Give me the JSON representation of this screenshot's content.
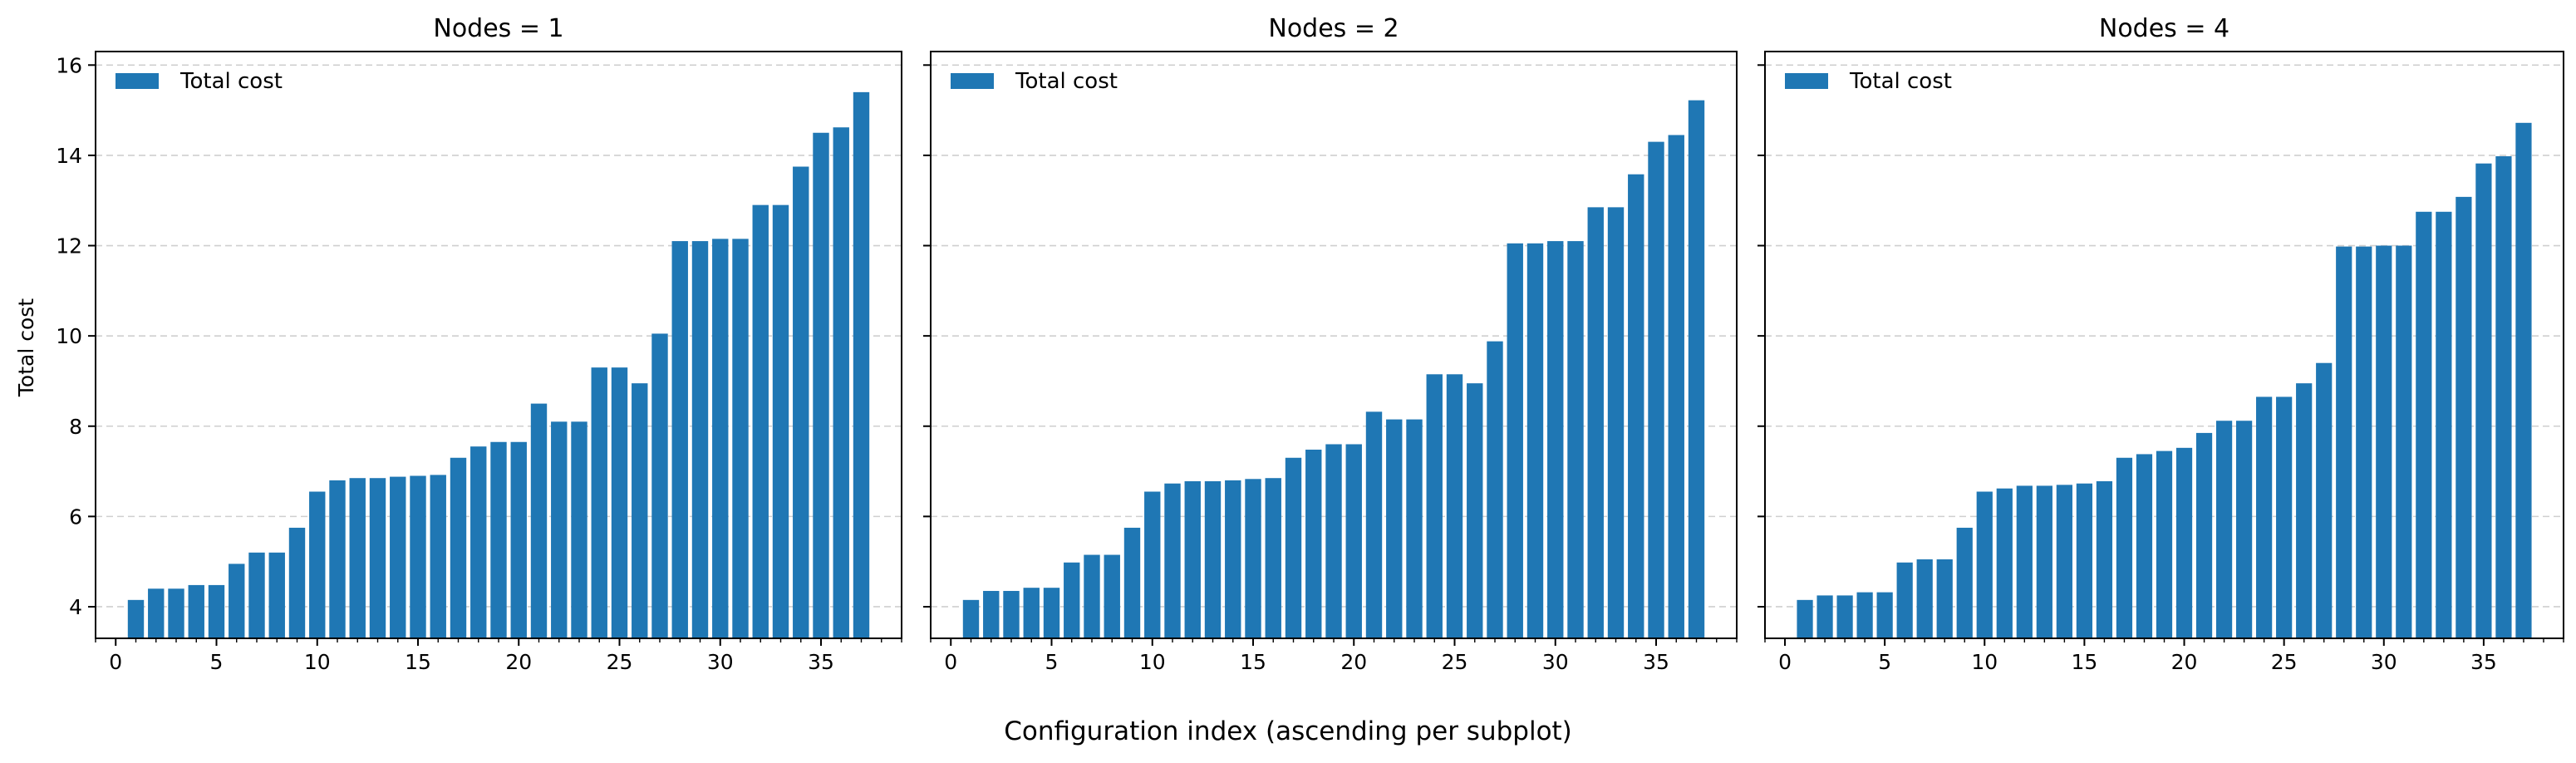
{
  "figure": {
    "xlabel": "Configuration index (ascending per subplot)",
    "ylabel": "Total cost",
    "bar_color": "#1f77b4"
  },
  "chart_data": [
    {
      "type": "bar",
      "title": "Nodes = 1",
      "legend": "Total cost",
      "legend_position": "upper-left",
      "grid": "y-dashed",
      "ylabel": "Total cost",
      "xlabel": "Configuration index (ascending per subplot)",
      "x": [
        1,
        2,
        3,
        4,
        5,
        6,
        7,
        8,
        9,
        10,
        11,
        12,
        13,
        14,
        15,
        16,
        17,
        18,
        19,
        20,
        21,
        22,
        23,
        24,
        25,
        26,
        27,
        28,
        29,
        30,
        31,
        32,
        33,
        34,
        35,
        36,
        37
      ],
      "values": [
        4.15,
        4.4,
        4.4,
        4.48,
        4.48,
        4.95,
        5.2,
        5.2,
        5.75,
        6.55,
        6.8,
        6.85,
        6.85,
        6.88,
        6.9,
        6.92,
        7.3,
        7.55,
        7.65,
        7.65,
        8.5,
        8.1,
        8.1,
        9.3,
        9.3,
        8.95,
        10.05,
        12.1,
        12.1,
        12.15,
        12.15,
        12.9,
        12.9,
        13.75,
        14.5,
        14.62,
        15.4
      ],
      "xlim": [
        -1,
        39
      ],
      "ylim": [
        3.3,
        16.3
      ],
      "xticks": [
        0,
        5,
        10,
        15,
        20,
        25,
        30,
        35
      ],
      "yticks": [
        4,
        6,
        8,
        10,
        12,
        14,
        16
      ]
    },
    {
      "type": "bar",
      "title": "Nodes = 2",
      "legend": "Total cost",
      "legend_position": "upper-left",
      "grid": "y-dashed",
      "xlabel": "Configuration index (ascending per subplot)",
      "x": [
        1,
        2,
        3,
        4,
        5,
        6,
        7,
        8,
        9,
        10,
        11,
        12,
        13,
        14,
        15,
        16,
        17,
        18,
        19,
        20,
        21,
        22,
        23,
        24,
        25,
        26,
        27,
        28,
        29,
        30,
        31,
        32,
        33,
        34,
        35,
        36,
        37
      ],
      "values": [
        4.15,
        4.35,
        4.35,
        4.42,
        4.42,
        4.98,
        5.15,
        5.15,
        5.75,
        6.55,
        6.73,
        6.78,
        6.78,
        6.8,
        6.83,
        6.85,
        7.3,
        7.48,
        7.6,
        7.6,
        8.32,
        8.15,
        8.15,
        9.15,
        9.15,
        8.95,
        9.88,
        12.05,
        12.05,
        12.1,
        12.1,
        12.85,
        12.85,
        13.58,
        14.3,
        14.45,
        15.22
      ],
      "xlim": [
        -1,
        39
      ],
      "ylim": [
        3.3,
        16.3
      ],
      "xticks": [
        0,
        5,
        10,
        15,
        20,
        25,
        30,
        35
      ],
      "yticks": [
        4,
        6,
        8,
        10,
        12,
        14,
        16
      ]
    },
    {
      "type": "bar",
      "title": "Nodes = 4",
      "legend": "Total cost",
      "legend_position": "upper-left",
      "grid": "y-dashed",
      "xlabel": "Configuration index (ascending per subplot)",
      "x": [
        1,
        2,
        3,
        4,
        5,
        6,
        7,
        8,
        9,
        10,
        11,
        12,
        13,
        14,
        15,
        16,
        17,
        18,
        19,
        20,
        21,
        22,
        23,
        24,
        25,
        26,
        27,
        28,
        29,
        30,
        31,
        32,
        33,
        34,
        35,
        36,
        37
      ],
      "values": [
        4.15,
        4.25,
        4.25,
        4.32,
        4.32,
        4.98,
        5.05,
        5.05,
        5.75,
        6.55,
        6.62,
        6.68,
        6.68,
        6.7,
        6.73,
        6.78,
        7.3,
        7.38,
        7.45,
        7.52,
        7.85,
        8.12,
        8.12,
        8.65,
        8.65,
        8.95,
        9.4,
        11.98,
        11.98,
        12.0,
        12.0,
        12.75,
        12.75,
        13.08,
        13.82,
        13.98,
        14.72
      ],
      "xlim": [
        -1,
        39
      ],
      "ylim": [
        3.3,
        16.3
      ],
      "xticks": [
        0,
        5,
        10,
        15,
        20,
        25,
        30,
        35
      ],
      "yticks": [
        4,
        6,
        8,
        10,
        12,
        14,
        16
      ]
    }
  ]
}
